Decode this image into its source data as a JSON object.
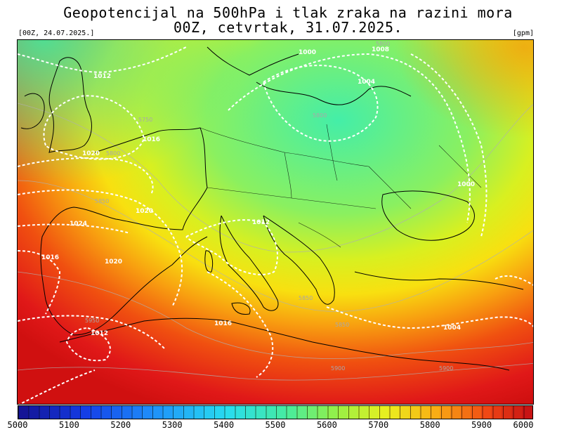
{
  "header": {
    "title_line1": "Geopotencijal na 500hPa i tlak zraka na razini mora",
    "title_line2": "00Z, cetvrtak, 31.07.2025.",
    "run_label": "[00Z, 24.07.2025.]",
    "unit_label": "[gpm]"
  },
  "isobars": {
    "labels": [
      "1012",
      "1016",
      "1020",
      "1020",
      "1024",
      "1016",
      "1020",
      "1012",
      "1016",
      "1012",
      "1008",
      "1004",
      "1000",
      "1000",
      "1004"
    ]
  },
  "geopotential": {
    "labels": [
      "5750",
      "5800",
      "5850",
      "5800",
      "5850",
      "5950",
      "5900",
      "5850",
      "5800",
      "5900"
    ]
  },
  "colorbar": {
    "ticks": [
      "5000",
      "5100",
      "5200",
      "5300",
      "5400",
      "5500",
      "5600",
      "5700",
      "5800",
      "5900",
      "6000"
    ],
    "min": 5000,
    "max": 6000
  },
  "colors": {
    "low": "#1a1acc",
    "mid": "#4ee8a8",
    "high": "#e01010"
  }
}
